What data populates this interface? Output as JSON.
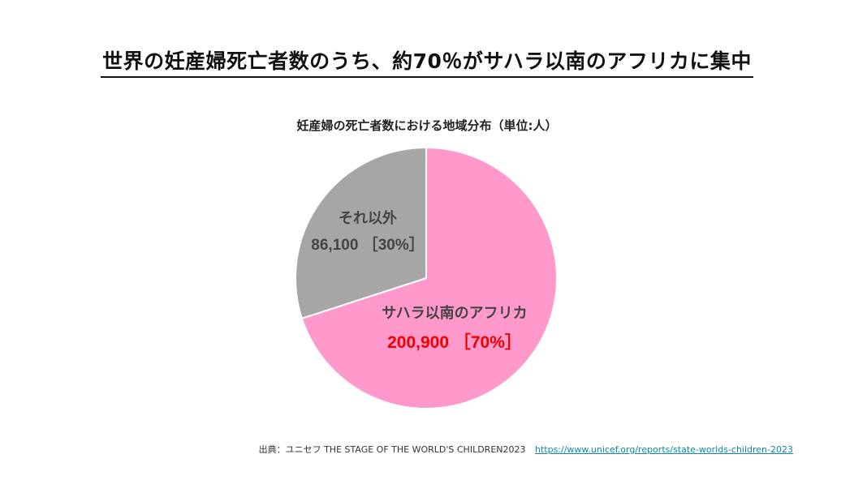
{
  "headline": "世界の妊産婦死亡者数のうち、約70％がサハラ以南のアフリカに集中",
  "chart_data": {
    "type": "pie",
    "title": "妊産婦の死亡者数における地域分布（単位:人）",
    "slices": [
      {
        "name": "サハラ以南のアフリカ",
        "value": 200900,
        "value_label": "200,900",
        "percent_label": "［70%］",
        "color": "#ff99cc"
      },
      {
        "name": "それ以外",
        "value": 86100,
        "value_label": "86,100",
        "percent_label": "［30%］",
        "color": "#a6a6a6"
      }
    ]
  },
  "source": {
    "text": "出典：ユニセフ THE STAGE OF THE WORLD'S CHILDREN2023",
    "link": "https://www.unicef.org/reports/state-worlds-children-2023"
  }
}
